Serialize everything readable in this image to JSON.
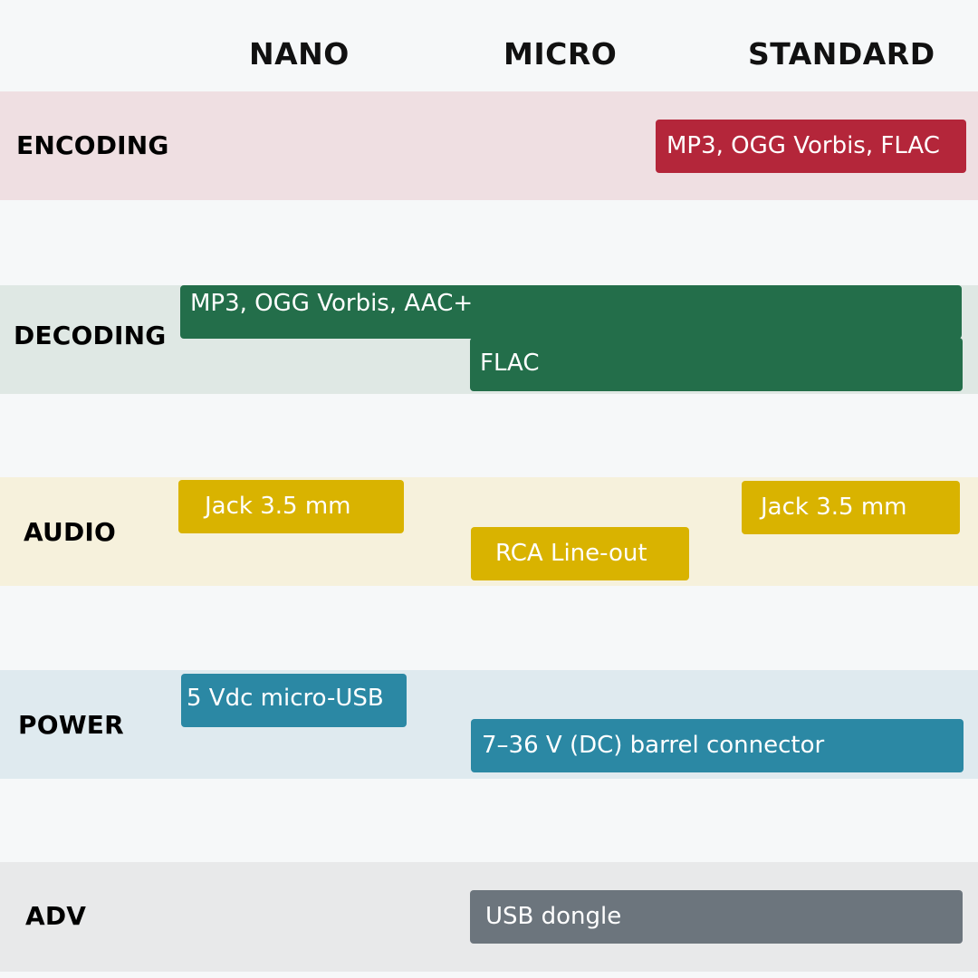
{
  "columns": {
    "nano": "NANO",
    "micro": "MICRO",
    "standard": "STANDARD"
  },
  "colors": {
    "page_bg": "#f6f8f9",
    "encoding_band": "#efdfe2",
    "encoding_pill": "#b4263a",
    "decoding_band": "#dfe8e4",
    "decoding_pill": "#236e4a",
    "audio_band": "#f6f1dc",
    "audio_pill": "#d9b300",
    "power_band": "#dfeaef",
    "power_pill": "#2b88a4",
    "adv_band": "#e8e9ea",
    "adv_pill": "#6c757d"
  },
  "rows": {
    "encoding": {
      "label": "ENCODING",
      "items": {
        "standard": "MP3, OGG Vorbis, FLAC"
      }
    },
    "decoding": {
      "label": "DECODING",
      "items": {
        "all": "MP3, OGG Vorbis, AAC+",
        "micro_standard": "FLAC"
      }
    },
    "audio": {
      "label": "AUDIO",
      "items": {
        "nano": "Jack 3.5 mm",
        "micro": "RCA Line-out",
        "standard": "Jack 3.5 mm"
      }
    },
    "power": {
      "label": "POWER",
      "items": {
        "nano": "5 Vdc micro-USB",
        "micro_standard": "7–36 V (DC) barrel connector"
      }
    },
    "adv": {
      "label": "ADV",
      "items": {
        "micro_standard": "USB dongle"
      }
    }
  }
}
